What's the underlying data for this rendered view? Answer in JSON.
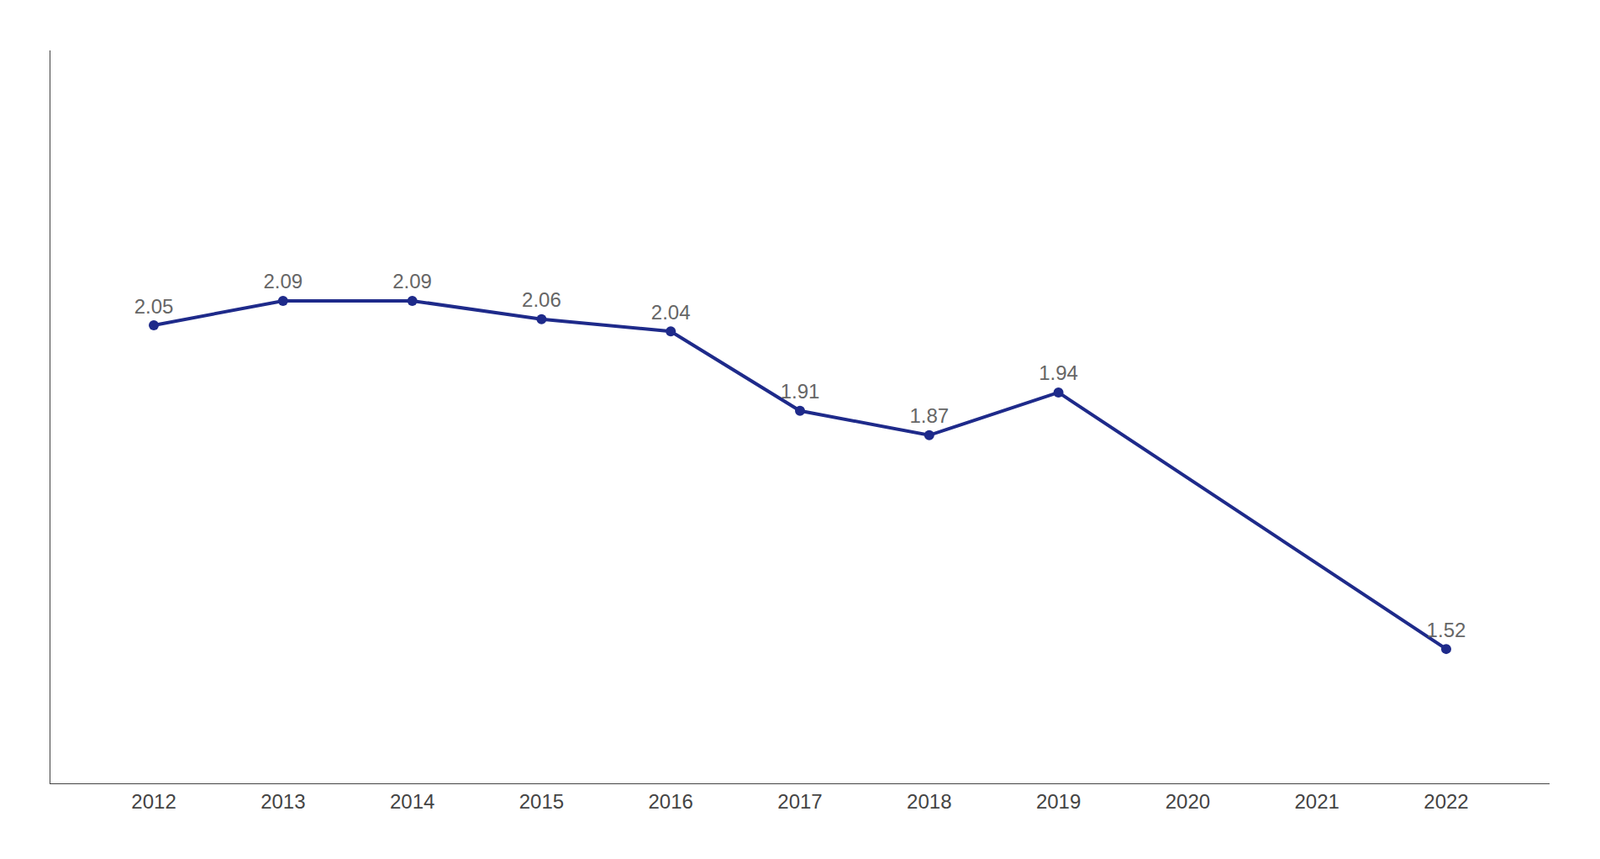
{
  "chart_data": {
    "type": "line",
    "x": [
      2012,
      2013,
      2014,
      2015,
      2016,
      2017,
      2018,
      2019,
      2022
    ],
    "values": [
      2.05,
      2.09,
      2.09,
      2.06,
      2.04,
      1.91,
      1.87,
      1.94,
      1.52
    ],
    "color": "#1e2a8a",
    "marker": "circle",
    "xlim": [
      2011.2,
      2022.8
    ],
    "xticks": [
      2012,
      2013,
      2014,
      2015,
      2016,
      2017,
      2018,
      2019,
      2020,
      2021,
      2022
    ],
    "ylim": [
      1.3,
      2.5
    ],
    "data_labels": true,
    "tick_labels": "x",
    "grid": false
  }
}
